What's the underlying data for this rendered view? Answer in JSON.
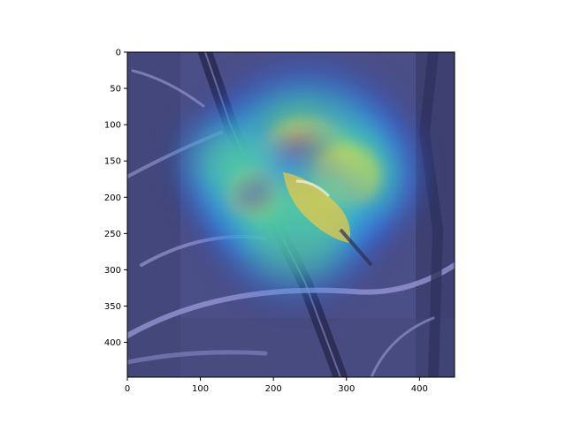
{
  "chart_data": {
    "type": "heatmap",
    "title": "",
    "xlabel": "",
    "ylabel": "",
    "image_size": [
      448,
      448
    ],
    "xlim": [
      0,
      448
    ],
    "ylim": [
      448,
      0
    ],
    "x_ticks": [
      0,
      100,
      200,
      300,
      400
    ],
    "y_ticks": [
      0,
      50,
      100,
      150,
      200,
      250,
      300,
      350,
      400
    ],
    "x_tick_labels": [
      "0",
      "100",
      "200",
      "300",
      "400"
    ],
    "y_tick_labels": [
      "0",
      "50",
      "100",
      "150",
      "200",
      "250",
      "300",
      "350",
      "400"
    ],
    "grid": false,
    "legend": "none",
    "colormap": "jet",
    "background_tone": "#4a4f86",
    "overlay_description_hidden": "activation heatmap over a bird on branches",
    "hotspots": [
      {
        "x": 245,
        "y": 155,
        "r": 120,
        "intensity": 1.0
      },
      {
        "x": 175,
        "y": 195,
        "r": 70,
        "intensity": 0.9
      },
      {
        "x": 300,
        "y": 170,
        "r": 80,
        "intensity": 0.55
      },
      {
        "x": 230,
        "y": 240,
        "r": 90,
        "intensity": 0.45
      },
      {
        "x": 140,
        "y": 150,
        "r": 60,
        "intensity": 0.35
      }
    ]
  }
}
